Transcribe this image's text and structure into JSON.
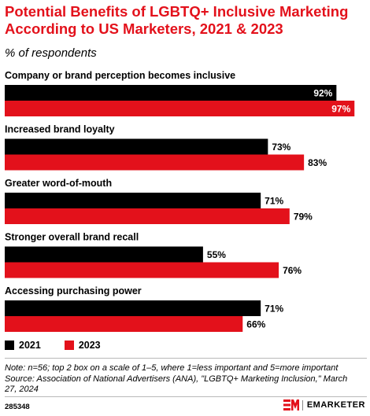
{
  "title": "Potential Benefits of LGBTQ+ Inclusive Marketing According to US Marketers, 2021 & 2023",
  "subtitle": "% of respondents",
  "colors": {
    "title": "#e3111b",
    "series_2021": "#000000",
    "series_2023": "#e3111b",
    "label_light": "#ffffff",
    "label_dark": "#000000"
  },
  "chart_data": {
    "type": "bar",
    "orientation": "horizontal",
    "categories": [
      "Company or brand perception becomes inclusive",
      "Increased brand loyalty",
      "Greater word-of-mouth",
      "Stronger overall brand recall",
      "Accessing purchasing power"
    ],
    "series": [
      {
        "name": "2021",
        "values": [
          92,
          73,
          71,
          55,
          71
        ],
        "labels": [
          "92%",
          "73%",
          "71%",
          "55%",
          "71%"
        ]
      },
      {
        "name": "2023",
        "values": [
          97,
          83,
          79,
          76,
          66
        ],
        "labels": [
          "97%",
          "83%",
          "79%",
          "76%",
          "66%"
        ]
      }
    ],
    "xlim": [
      0,
      100
    ],
    "grid": false,
    "legend_position": "bottom-left"
  },
  "legend": [
    {
      "label": "2021",
      "color": "#000000"
    },
    {
      "label": "2023",
      "color": "#e3111b"
    }
  ],
  "note": "Note: n=56; top 2 box on a scale of 1–5, where 1=less important and 5=more important",
  "source": "Source: Association of National Advertisers (ANA), \"LGBTQ+ Marketing Inclusion,\" March 27, 2024",
  "chart_id": "285348",
  "brand": "EMARKETER"
}
